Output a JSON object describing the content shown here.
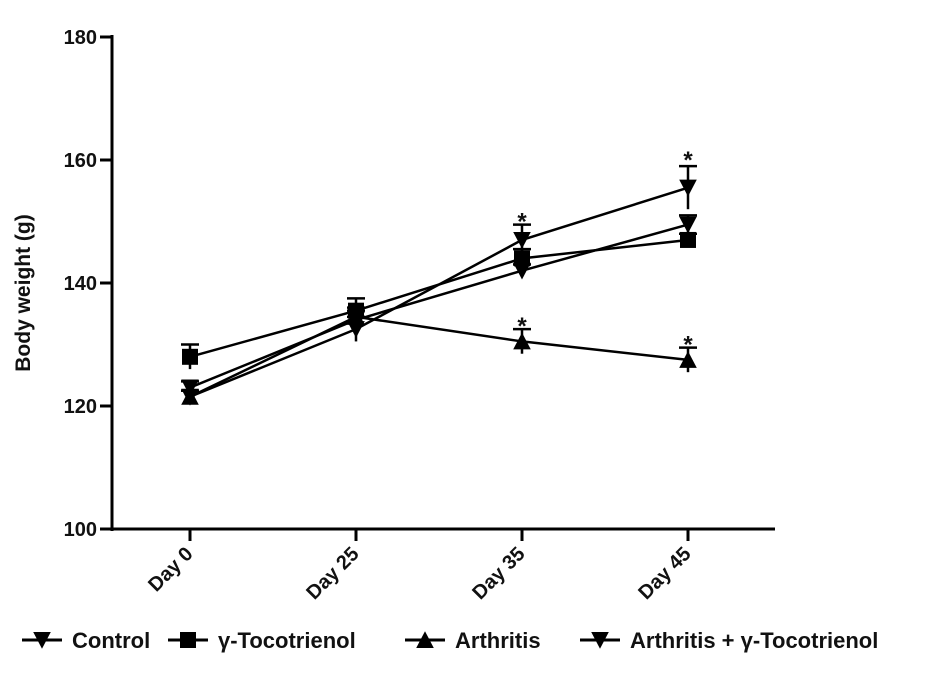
{
  "chart_data": {
    "type": "line",
    "title": "",
    "xlabel": "",
    "ylabel": "Body weight (g)",
    "categories": [
      "Day 0",
      "Day 25",
      "Day 35",
      "Day 45"
    ],
    "ylim": [
      100,
      180
    ],
    "yticks": [
      "100",
      "120",
      "140",
      "160",
      "180"
    ],
    "grid": false,
    "legend_position": "bottom",
    "significance_marker": "*",
    "series": [
      {
        "name": "Control",
        "marker": "triangle-down",
        "values": [
          123,
          134,
          142,
          149.5
        ],
        "errors": [
          1,
          1.5,
          1,
          1.5
        ]
      },
      {
        "name": "γ-Tocotrienol",
        "marker": "square",
        "values": [
          128,
          135.5,
          144,
          147
        ],
        "errors": [
          2,
          2,
          1.5,
          1
        ]
      },
      {
        "name": "Arthritis",
        "marker": "triangle-up",
        "values": [
          121.5,
          134.5,
          130.5,
          127.5
        ],
        "errors": [
          1,
          1.5,
          2,
          2
        ]
      },
      {
        "name": "Arthritis + γ-Tocotrienol",
        "marker": "triangle-down",
        "values": [
          121.5,
          132.5,
          147,
          155.5
        ],
        "errors": [
          1,
          2,
          2.5,
          3.5
        ]
      }
    ],
    "annotations": [
      {
        "text": "*",
        "category": "Day 35",
        "value": 151
      },
      {
        "text": "*",
        "category": "Day 45",
        "value": 161
      },
      {
        "text": "*",
        "category": "Day 35",
        "value": 134
      },
      {
        "text": "*",
        "category": "Day 45",
        "value": 131
      }
    ]
  }
}
